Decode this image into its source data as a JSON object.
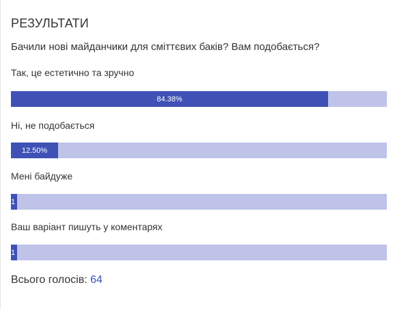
{
  "poll": {
    "heading": "РЕЗУЛЬТАТИ",
    "question": "Бачили нові майданчики для сміттєвих баків? Вам подобається?",
    "options": [
      {
        "label": "Так, це естетично та зручно",
        "value_label": "84.38%",
        "fraction": 0.8438
      },
      {
        "label": "Ні, не подобається",
        "value_label": "12.50%",
        "fraction": 0.125
      },
      {
        "label": "Мені байдуже",
        "value_label": "1",
        "fraction": 0.0156
      },
      {
        "label": "Ваш варіант пишуть у коментарях",
        "value_label": "1",
        "fraction": 0.0156
      }
    ],
    "total_label": "Всього голосів:",
    "total_count": "64"
  },
  "colors": {
    "bar_fill": "#3f51b5",
    "bar_track": "#bfc3ea",
    "text": "#333333",
    "accent": "#3f51b5"
  }
}
